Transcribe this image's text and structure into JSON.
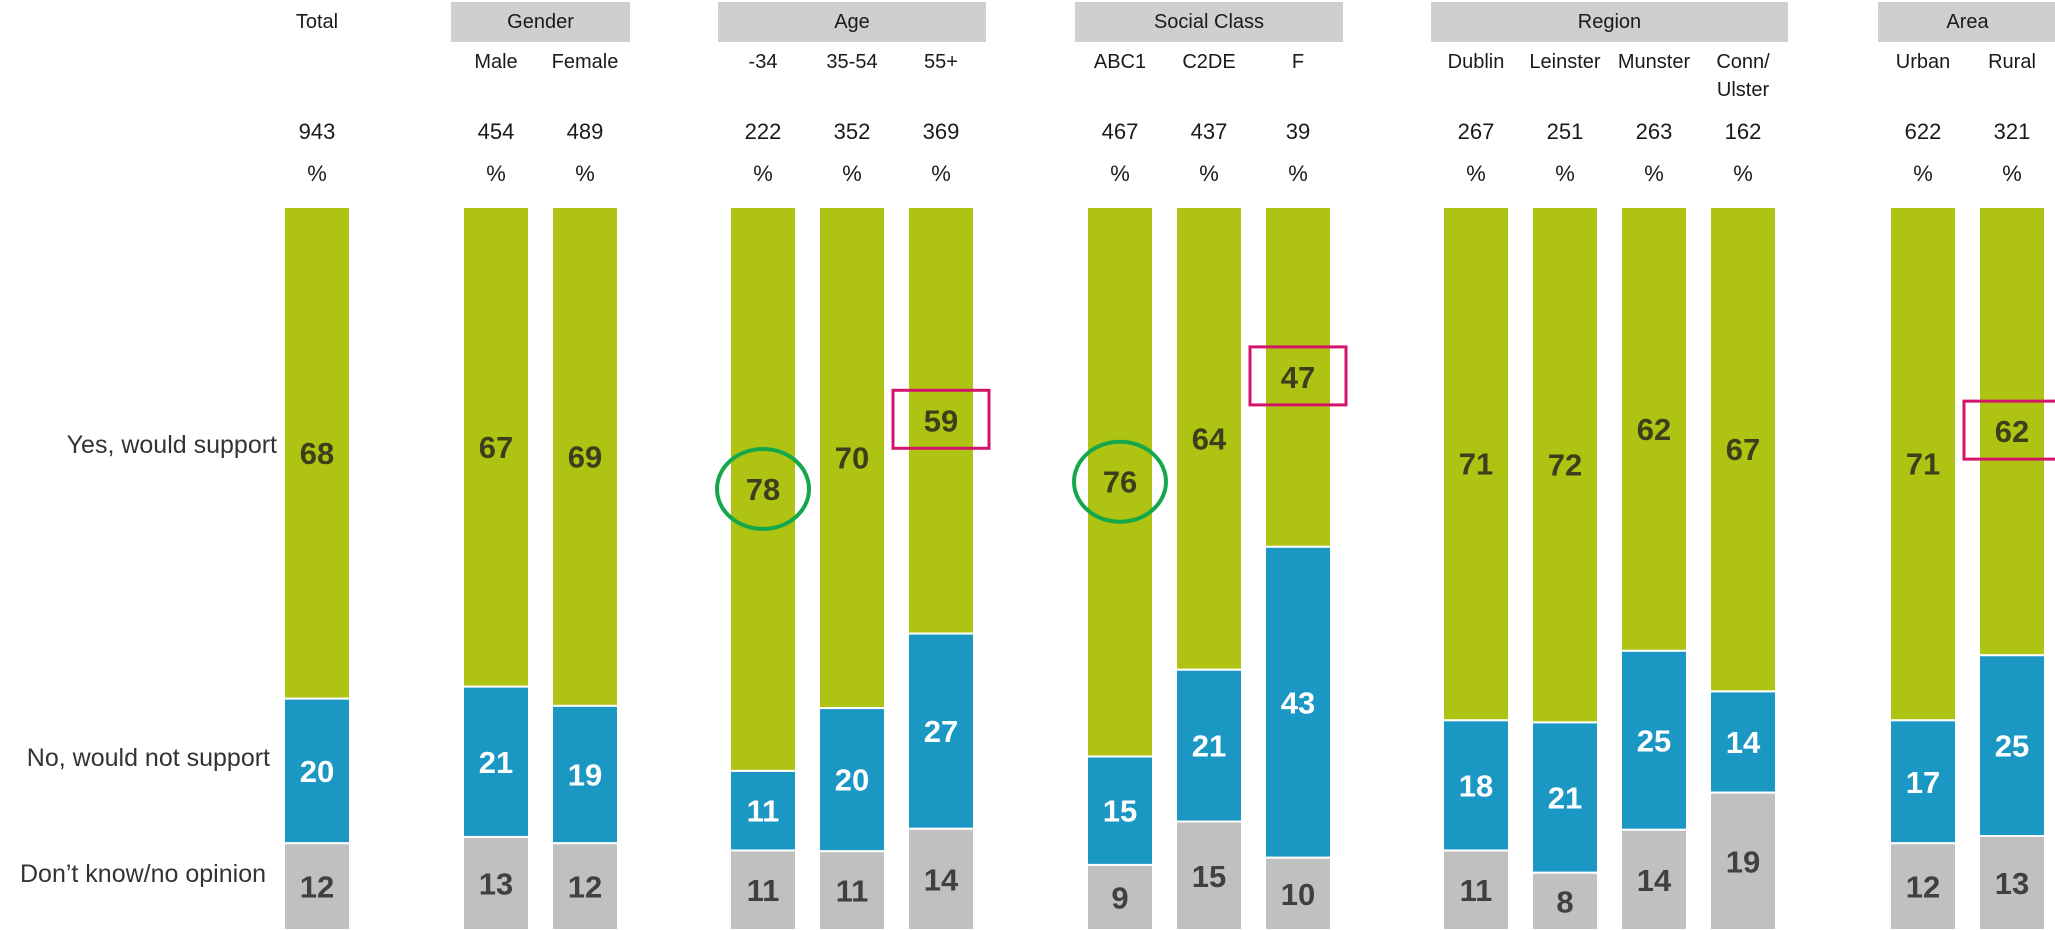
{
  "chart_data": {
    "type": "bar",
    "stacked": true,
    "percent_symbol": "%",
    "row_labels": [
      "Yes, would support",
      "No, would not support",
      "Don’t know/no opinion"
    ],
    "colors": {
      "yes": "#afc412",
      "no": "#1b97c4",
      "dk": "#c0c0c0",
      "header_bg": "#d0cfcf",
      "highlight_box": "#d3146b",
      "highlight_circle": "#14a84a"
    },
    "groups": [
      {
        "label": "Total",
        "header_bg": false,
        "columns": [
          {
            "label": "",
            "n": "943",
            "yes": 68,
            "no": 20,
            "dk": 12
          }
        ]
      },
      {
        "label": "Gender",
        "header_bg": true,
        "columns": [
          {
            "label": "Male",
            "n": "454",
            "yes": 67,
            "no": 21,
            "dk": 13
          },
          {
            "label": "Female",
            "n": "489",
            "yes": 69,
            "no": 19,
            "dk": 12
          }
        ]
      },
      {
        "label": "Age",
        "header_bg": true,
        "columns": [
          {
            "label": "-34",
            "n": "222",
            "yes": 78,
            "no": 11,
            "dk": 11,
            "highlight": "circle"
          },
          {
            "label": "35-54",
            "n": "352",
            "yes": 70,
            "no": 20,
            "dk": 11
          },
          {
            "label": "55+",
            "n": "369",
            "yes": 59,
            "no": 27,
            "dk": 14,
            "highlight": "box"
          }
        ]
      },
      {
        "label": "Social Class",
        "header_bg": true,
        "columns": [
          {
            "label": "ABC1",
            "n": "467",
            "yes": 76,
            "no": 15,
            "dk": 9,
            "highlight": "circle"
          },
          {
            "label": "C2DE",
            "n": "437",
            "yes": 64,
            "no": 21,
            "dk": 15
          },
          {
            "label": "F",
            "n": "39",
            "yes": 47,
            "no": 43,
            "dk": 10,
            "highlight": "box"
          }
        ]
      },
      {
        "label": "Region",
        "header_bg": true,
        "columns": [
          {
            "label": "Dublin",
            "n": "267",
            "yes": 71,
            "no": 18,
            "dk": 11
          },
          {
            "label": "Leinster",
            "n": "251",
            "yes": 72,
            "no": 21,
            "dk": 8
          },
          {
            "label": "Munster",
            "n": "263",
            "yes": 62,
            "no": 25,
            "dk": 14
          },
          {
            "label": "Conn/ Ulster",
            "n": "162",
            "yes": 67,
            "no": 14,
            "dk": 19
          }
        ]
      },
      {
        "label": "Area",
        "header_bg": true,
        "columns": [
          {
            "label": "Urban",
            "n": "622",
            "yes": 71,
            "no": 17,
            "dk": 12
          },
          {
            "label": "Rural",
            "n": "321",
            "yes": 62,
            "no": 25,
            "dk": 13,
            "highlight": "box"
          }
        ]
      }
    ]
  }
}
